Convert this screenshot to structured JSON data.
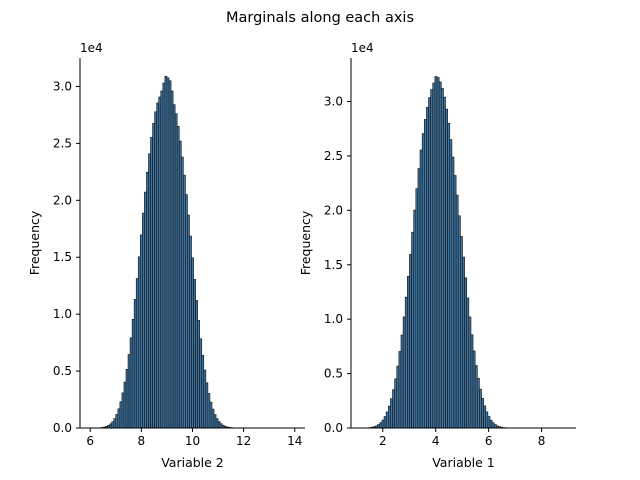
{
  "figure": {
    "title": "Marginals along each axis"
  },
  "chart_data": [
    {
      "type": "bar",
      "xlabel": "Variable 2",
      "ylabel": "Frequency",
      "offset_text": "1e4",
      "xlim": [
        5.6,
        14.4
      ],
      "ylim": [
        0,
        32500
      ],
      "xticks": [
        6,
        8,
        10,
        12,
        14
      ],
      "xtick_labels": [
        "6",
        "8",
        "10",
        "12",
        "14"
      ],
      "yticks": [
        0,
        5000,
        10000,
        15000,
        20000,
        25000,
        30000
      ],
      "ytick_labels": [
        "0.0",
        "0.5",
        "1.0",
        "1.5",
        "2.0",
        "2.5",
        "3.0"
      ],
      "bin_start": 6.2,
      "bin_width": 0.08,
      "values": [
        4,
        11,
        23,
        45,
        80,
        140,
        230,
        360,
        550,
        820,
        1190,
        1680,
        2300,
        3080,
        4030,
        5150,
        6450,
        7920,
        9540,
        11290,
        13130,
        15030,
        16960,
        18870,
        20720,
        22470,
        24080,
        25520,
        26750,
        27770,
        28550,
        29070,
        29600,
        30300,
        30900,
        30750,
        30500,
        29600,
        28400,
        27600,
        26500,
        25200,
        23800,
        22200,
        20500,
        18700,
        16850,
        14950,
        13050,
        11200,
        9450,
        7840,
        6380,
        5090,
        3970,
        3030,
        2270,
        1660,
        1180,
        820,
        560,
        370,
        240,
        150,
        90,
        55,
        30,
        16,
        8,
        4
      ],
      "bar_color": "#3b76a6",
      "edge_color": "#1a1a1a"
    },
    {
      "type": "bar",
      "xlabel": "Variable 1",
      "ylabel": "Frequency",
      "offset_text": "1e4",
      "xlim": [
        0.8,
        9.3
      ],
      "ylim": [
        0,
        34000
      ],
      "xticks": [
        2,
        4,
        6,
        8
      ],
      "xtick_labels": [
        "2",
        "4",
        "6",
        "8"
      ],
      "yticks": [
        0,
        5000,
        10000,
        15000,
        20000,
        25000,
        30000
      ],
      "ytick_labels": [
        "0.0",
        "0.5",
        "1.0",
        "1.5",
        "2.0",
        "2.5",
        "3.0"
      ],
      "bin_start": 1.25,
      "bin_width": 0.08,
      "values": [
        4,
        10,
        21,
        40,
        72,
        125,
        205,
        320,
        490,
        730,
        1050,
        1470,
        2010,
        2690,
        3520,
        4520,
        5690,
        7030,
        8540,
        10210,
        12020,
        13940,
        15950,
        17990,
        20020,
        21990,
        23840,
        25540,
        27050,
        28350,
        29460,
        30360,
        31100,
        31700,
        32300,
        32200,
        31800,
        31200,
        30400,
        29300,
        28000,
        26500,
        24900,
        23200,
        21400,
        19500,
        17600,
        15700,
        13800,
        11950,
        10200,
        8570,
        7080,
        5740,
        4570,
        3560,
        2720,
        2030,
        1480,
        1050,
        720,
        480,
        310,
        190,
        115,
        65,
        35,
        18,
        8,
        3
      ],
      "bar_color": "#3b76a6",
      "edge_color": "#1a1a1a"
    }
  ]
}
